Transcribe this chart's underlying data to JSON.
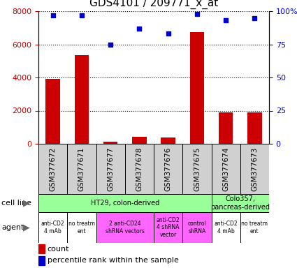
{
  "title": "GDS4101 / 209771_x_at",
  "samples": [
    "GSM377672",
    "GSM377671",
    "GSM377677",
    "GSM377678",
    "GSM377676",
    "GSM377675",
    "GSM377674",
    "GSM377673"
  ],
  "counts": [
    3900,
    5350,
    130,
    430,
    370,
    6750,
    1900,
    1900
  ],
  "percentiles": [
    97,
    97,
    75,
    87,
    83,
    98,
    93,
    95
  ],
  "ylim_left": [
    0,
    8000
  ],
  "ylim_right": [
    0,
    100
  ],
  "yticks_left": [
    0,
    2000,
    4000,
    6000,
    8000
  ],
  "yticks_right": [
    0,
    25,
    50,
    75,
    100
  ],
  "bar_color": "#cc0000",
  "dot_color": "#0000cc",
  "cell_line_groups": [
    {
      "text": "HT29, colon-derived",
      "start": 0,
      "end": 5,
      "color": "#99ff99"
    },
    {
      "text": "Colo357,\npancreas-derived",
      "start": 6,
      "end": 7,
      "color": "#99ff99"
    }
  ],
  "agent_groups": [
    {
      "text": "anti-CD2\n4 mAb",
      "start": 0,
      "end": 0,
      "color": "#ffffff"
    },
    {
      "text": "no treatm\nent",
      "start": 1,
      "end": 1,
      "color": "#ffffff"
    },
    {
      "text": "2 anti-CD24\nshRNA vectors",
      "start": 2,
      "end": 3,
      "color": "#ff66ff"
    },
    {
      "text": "anti-CD2\n4 shRNA\nvector",
      "start": 4,
      "end": 4,
      "color": "#ff66ff"
    },
    {
      "text": "control\nshRNA",
      "start": 5,
      "end": 5,
      "color": "#ff66ff"
    },
    {
      "text": "anti-CD2\n4 mAb",
      "start": 6,
      "end": 6,
      "color": "#ffffff"
    },
    {
      "text": "no treatm\nent",
      "start": 7,
      "end": 7,
      "color": "#ffffff"
    }
  ],
  "title_fontsize": 11,
  "axis_color_left": "#cc0000",
  "axis_color_right": "#0000cc",
  "gsm_bg_color": "#d0d0d0",
  "sample_label_fontsize": 7.5,
  "tick_fontsize": 8
}
